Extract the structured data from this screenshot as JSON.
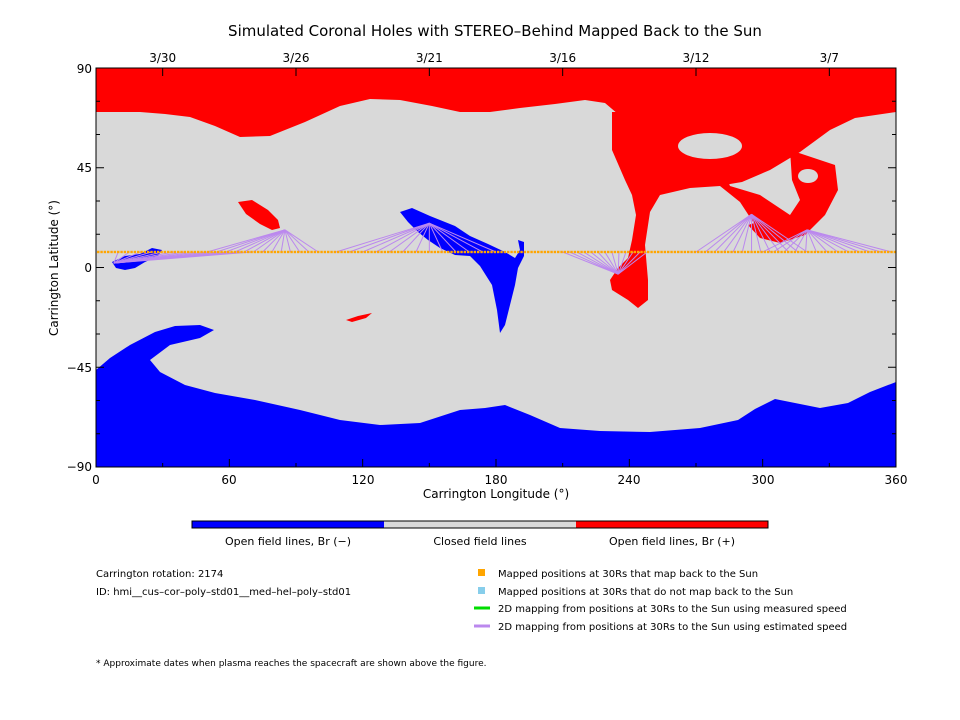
{
  "chart_data": {
    "type": "heatmap",
    "title": "Simulated Coronal Holes with STEREO–Behind Mapped Back to the Sun",
    "xlabel": "Carrington Longitude (°)",
    "ylabel": "Carrington Latitude (°)",
    "xlim": [
      0,
      360
    ],
    "ylim": [
      -90,
      90
    ],
    "x_ticks": [
      0,
      60,
      120,
      180,
      240,
      300,
      360
    ],
    "y_ticks": [
      -90,
      -45,
      0,
      45,
      90
    ],
    "top_axis_dates": [
      {
        "label": "3/30",
        "lon": 30
      },
      {
        "label": "3/26",
        "lon": 90
      },
      {
        "label": "3/21",
        "lon": 150
      },
      {
        "label": "3/16",
        "lon": 210
      },
      {
        "label": "3/12",
        "lon": 270
      },
      {
        "label": "3/7",
        "lon": 330
      }
    ],
    "mapped_latitude": 7,
    "colorbar": [
      {
        "label": "Open field lines, Br (−)",
        "color": "#0000ff"
      },
      {
        "label": "Closed field lines",
        "color": "#d9d9d9"
      },
      {
        "label": "Open field lines, Br (+)",
        "color": "#ff0000"
      }
    ],
    "legend": [
      {
        "label": "Mapped positions at 30Rs that map back to the Sun",
        "color": "#ffa500",
        "kind": "square"
      },
      {
        "label": "Mapped positions at 30Rs that do not map back to the Sun",
        "color": "#87ceeb",
        "kind": "square"
      },
      {
        "label": "2D mapping from positions at 30Rs to the Sun using measured speed",
        "color": "#00dd00",
        "kind": "line"
      },
      {
        "label": "2D mapping from positions at 30Rs to the Sun using estimated speed",
        "color": "#bb88ee",
        "kind": "line"
      }
    ],
    "mapping_fans": [
      {
        "target": [
          85,
          17
        ],
        "from_lon": [
          50,
          100
        ]
      },
      {
        "target": [
          150,
          20
        ],
        "from_lon": [
          108,
          180
        ]
      },
      {
        "target": [
          235,
          -3
        ],
        "from_lon": [
          210,
          248
        ]
      },
      {
        "target": [
          295,
          24
        ],
        "from_lon": [
          270,
          320
        ]
      },
      {
        "target": [
          320,
          17
        ],
        "from_lon": [
          300,
          358
        ]
      },
      {
        "target": [
          8,
          2
        ],
        "from_lon": [
          10,
          70
        ]
      }
    ]
  },
  "info": {
    "rotation": "Carrington rotation: 2174",
    "id": "ID: hmi__cus–cor–poly–std01__med–hel–poly–std01"
  },
  "footnote": "* Approximate dates when plasma reaches the spacecraft are shown above the figure.",
  "colors": {
    "open_negative": "#0000ff",
    "closed": "#d9d9d9",
    "open_positive": "#ff0000",
    "mapped": "#ffa500",
    "fan": "#bb88ee"
  }
}
